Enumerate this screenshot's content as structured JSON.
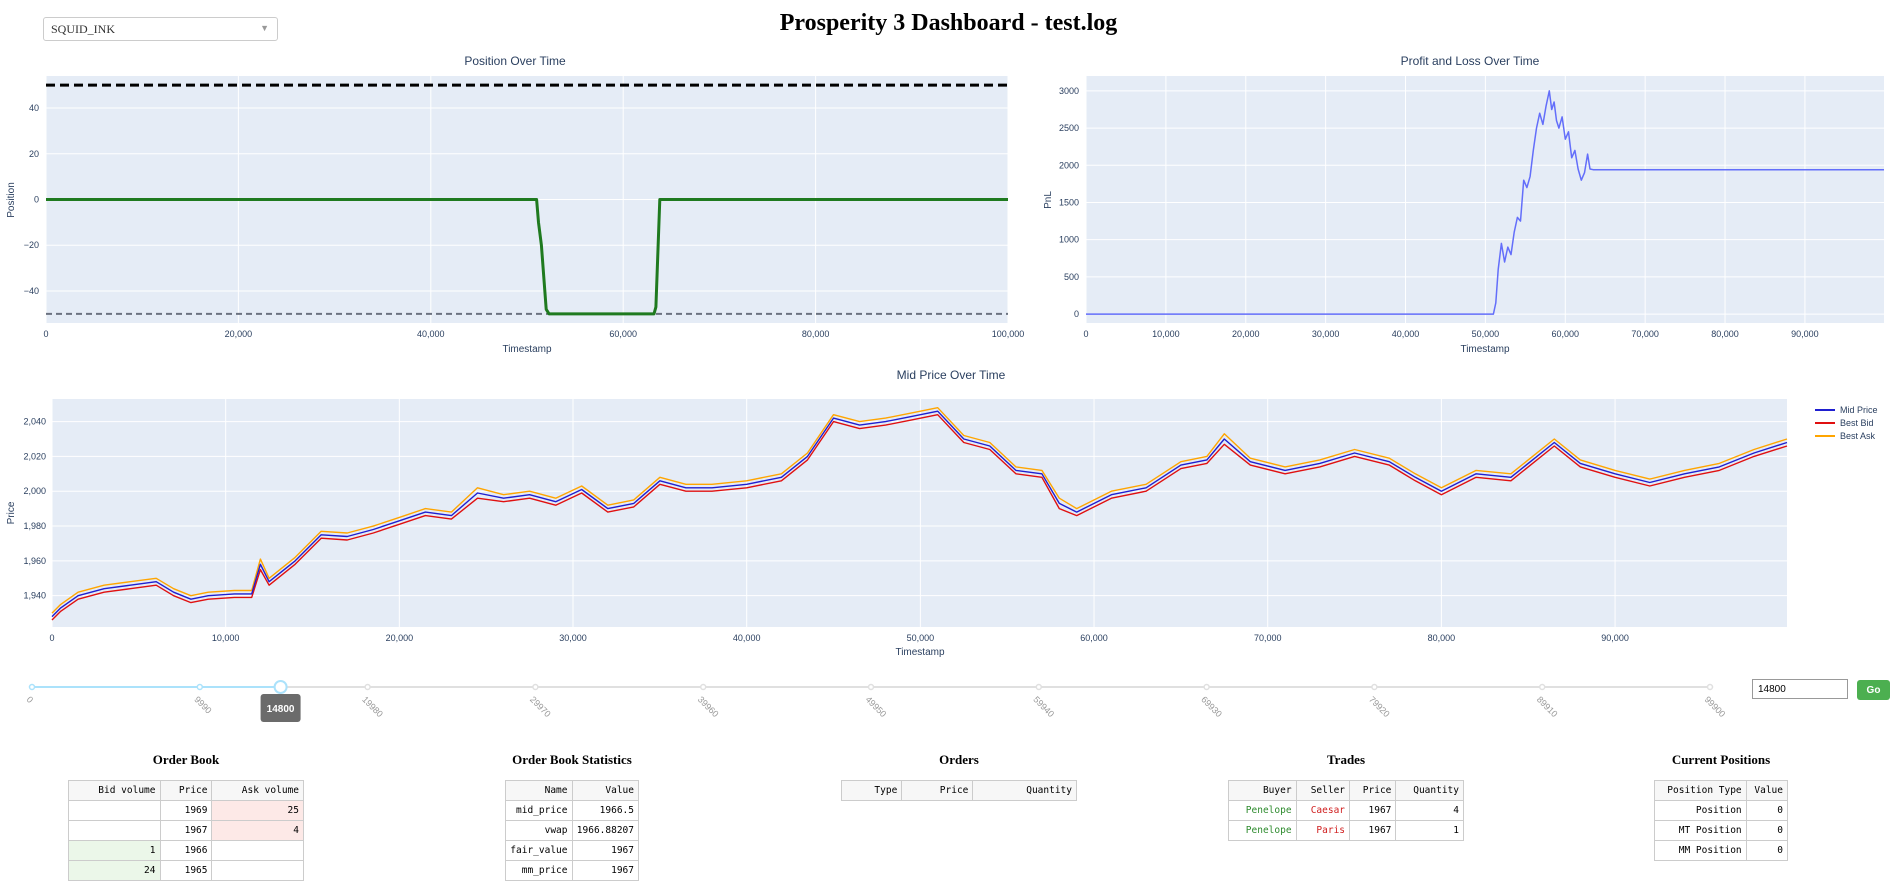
{
  "product_select": {
    "value": "SQUID_INK"
  },
  "title": "Prosperity 3 Dashboard - test.log",
  "chart_data": [
    {
      "id": "position",
      "type": "line",
      "title": "Position Over Time",
      "xlabel": "Timestamp",
      "ylabel": "Position",
      "xlim": [
        0,
        100000
      ],
      "ylim": [
        -54,
        54
      ],
      "xticks": [
        "0",
        "20,000",
        "40,000",
        "60,000",
        "80,000",
        "100,000"
      ],
      "xtick_values": [
        0,
        20000,
        40000,
        60000,
        80000,
        100000
      ],
      "yticks": [
        "40",
        "20",
        "0",
        "−20",
        "−40"
      ],
      "ytick_values": [
        40,
        20,
        0,
        -20,
        -40
      ],
      "reference_lines": [
        50,
        -50
      ],
      "grid": true,
      "series": [
        {
          "color": "#1f7a1f",
          "x": [
            0,
            51000,
            51200,
            51500,
            52000,
            52300,
            63200,
            63400,
            63800,
            100000
          ],
          "y": [
            0,
            0,
            -10,
            -20,
            -48,
            -50,
            -50,
            -47,
            0,
            0
          ]
        }
      ]
    },
    {
      "id": "pnl",
      "type": "line",
      "title": "Profit and Loss Over Time",
      "xlabel": "Timestamp",
      "ylabel": "PnL",
      "xlim": [
        0,
        99900
      ],
      "ylim": [
        -120,
        3200
      ],
      "xticks": [
        "0",
        "10,000",
        "20,000",
        "30,000",
        "40,000",
        "50,000",
        "60,000",
        "70,000",
        "80,000",
        "90,000"
      ],
      "xtick_values": [
        0,
        10000,
        20000,
        30000,
        40000,
        50000,
        60000,
        70000,
        80000,
        90000
      ],
      "yticks": [
        "3000",
        "2500",
        "2000",
        "1500",
        "1000",
        "500",
        "0"
      ],
      "ytick_values": [
        3000,
        2500,
        2000,
        1500,
        1000,
        500,
        0
      ],
      "grid": true,
      "series": [
        {
          "color": "#636efa",
          "x": [
            0,
            51000,
            51300,
            51600,
            52000,
            52400,
            52800,
            53200,
            53600,
            54000,
            54400,
            54800,
            55200,
            55600,
            56000,
            56400,
            56800,
            57200,
            57600,
            58000,
            58300,
            58600,
            58900,
            59200,
            59600,
            60000,
            60400,
            60800,
            61200,
            61600,
            62000,
            62400,
            62800,
            63100,
            63500,
            64000,
            70000,
            80000,
            90000,
            99900
          ],
          "y": [
            0,
            0,
            150,
            600,
            950,
            700,
            900,
            800,
            1100,
            1300,
            1250,
            1800,
            1700,
            1850,
            2200,
            2500,
            2700,
            2550,
            2800,
            3000,
            2750,
            2850,
            2600,
            2500,
            2650,
            2350,
            2450,
            2100,
            2200,
            1950,
            1800,
            1900,
            2150,
            1950,
            1940,
            1940,
            1940,
            1940,
            1940,
            1940
          ]
        }
      ]
    },
    {
      "id": "midprice",
      "type": "line",
      "title": "Mid Price Over Time",
      "xlabel": "Timestamp",
      "ylabel": "Price",
      "xlim": [
        0,
        99900
      ],
      "ylim": [
        1922,
        2053
      ],
      "xticks": [
        "0",
        "10,000",
        "20,000",
        "30,000",
        "40,000",
        "50,000",
        "60,000",
        "70,000",
        "80,000",
        "90,000"
      ],
      "xtick_values": [
        0,
        10000,
        20000,
        30000,
        40000,
        50000,
        60000,
        70000,
        80000,
        90000
      ],
      "yticks": [
        "2,040",
        "2,020",
        "2,000",
        "1,980",
        "1,960",
        "1,940"
      ],
      "ytick_values": [
        2040,
        2020,
        2000,
        1980,
        1960,
        1940
      ],
      "grid": true,
      "legend_position": "top-right",
      "x": [
        0,
        500,
        1500,
        3000,
        4500,
        6000,
        7000,
        8000,
        9000,
        10500,
        11500,
        12000,
        12500,
        14000,
        15500,
        17000,
        18500,
        20000,
        21500,
        23000,
        24500,
        26000,
        27500,
        29000,
        30500,
        32000,
        33500,
        35000,
        36500,
        38000,
        40000,
        42000,
        43500,
        45000,
        46500,
        48000,
        49500,
        51000,
        52500,
        54000,
        55500,
        57000,
        58000,
        59000,
        61000,
        63000,
        65000,
        66500,
        67500,
        69000,
        71000,
        73000,
        75000,
        77000,
        78500,
        80000,
        82000,
        84000,
        86500,
        88000,
        90000,
        92000,
        94000,
        96000,
        98000,
        99900
      ],
      "series": [
        {
          "name": "Mid Price",
          "color": "#1f1fd0",
          "y": [
            1928,
            1933,
            1940,
            1944,
            1946,
            1948,
            1942,
            1938,
            1940,
            1941,
            1941,
            1958,
            1948,
            1960,
            1975,
            1974,
            1978,
            1983,
            1988,
            1986,
            1999,
            1996,
            1998,
            1994,
            2001,
            1990,
            1993,
            2006,
            2002,
            2002,
            2004,
            2008,
            2020,
            2042,
            2038,
            2040,
            2043,
            2046,
            2030,
            2026,
            2012,
            2010,
            1993,
            1988,
            1998,
            2002,
            2015,
            2018,
            2030,
            2017,
            2012,
            2016,
            2022,
            2017,
            2008,
            2000,
            2010,
            2008,
            2028,
            2016,
            2010,
            2005,
            2010,
            2014,
            2022,
            2028
          ]
        },
        {
          "name": "Best Bid",
          "color": "#e01010",
          "y": [
            1926,
            1931,
            1938,
            1942,
            1944,
            1946,
            1940,
            1936,
            1938,
            1939,
            1939,
            1955,
            1946,
            1958,
            1973,
            1972,
            1976,
            1981,
            1986,
            1984,
            1996,
            1994,
            1996,
            1992,
            1999,
            1988,
            1991,
            2004,
            2000,
            2000,
            2002,
            2006,
            2018,
            2040,
            2036,
            2038,
            2041,
            2044,
            2028,
            2024,
            2010,
            2008,
            1990,
            1986,
            1996,
            2000,
            2013,
            2016,
            2027,
            2015,
            2010,
            2014,
            2020,
            2015,
            2006,
            1998,
            2008,
            2006,
            2026,
            2014,
            2008,
            2003,
            2008,
            2012,
            2020,
            2026
          ]
        },
        {
          "name": "Best Ask",
          "color": "#ffa500",
          "y": [
            1930,
            1935,
            1942,
            1946,
            1948,
            1950,
            1944,
            1940,
            1942,
            1943,
            1943,
            1961,
            1950,
            1962,
            1977,
            1976,
            1980,
            1985,
            1990,
            1988,
            2002,
            1998,
            2000,
            1996,
            2003,
            1992,
            1995,
            2008,
            2004,
            2004,
            2006,
            2010,
            2022,
            2044,
            2040,
            2042,
            2045,
            2048,
            2032,
            2028,
            2014,
            2012,
            1996,
            1990,
            2000,
            2004,
            2017,
            2020,
            2033,
            2019,
            2014,
            2018,
            2024,
            2019,
            2010,
            2002,
            2012,
            2010,
            2030,
            2018,
            2012,
            2007,
            2012,
            2016,
            2024,
            2030
          ]
        }
      ]
    }
  ],
  "slider": {
    "value": 14800,
    "value_label": "14800",
    "min": 0,
    "max": 99900,
    "marks": [
      "0",
      "9990",
      "19980",
      "29970",
      "39960",
      "49950",
      "59940",
      "69930",
      "79920",
      "89910",
      "99900"
    ],
    "mark_values": [
      0,
      9990,
      19980,
      29970,
      39960,
      49950,
      59940,
      69930,
      79920,
      89910,
      99900
    ]
  },
  "timestamp_input": {
    "value": "14800"
  },
  "go_button": {
    "label": "Go"
  },
  "order_book": {
    "title": "Order Book",
    "headers": [
      "Bid volume",
      "Price",
      "Ask volume"
    ],
    "rows": [
      {
        "bid": "",
        "price": "1969",
        "ask": "25"
      },
      {
        "bid": "",
        "price": "1967",
        "ask": "4"
      },
      {
        "bid": "1",
        "price": "1966",
        "ask": ""
      },
      {
        "bid": "24",
        "price": "1965",
        "ask": ""
      }
    ]
  },
  "stats": {
    "title": "Order Book Statistics",
    "headers": [
      "Name",
      "Value"
    ],
    "rows": [
      {
        "name": "mid_price",
        "value": "1966.5"
      },
      {
        "name": "vwap",
        "value": "1966.88207"
      },
      {
        "name": "fair_value",
        "value": "1967"
      },
      {
        "name": "mm_price",
        "value": "1967"
      }
    ]
  },
  "orders": {
    "title": "Orders",
    "headers": [
      "Type",
      "Price",
      "Quantity"
    ]
  },
  "trades": {
    "title": "Trades",
    "headers": [
      "Buyer",
      "Seller",
      "Price",
      "Quantity"
    ],
    "rows": [
      {
        "buyer": "Penelope",
        "seller": "Caesar",
        "price": "1967",
        "quantity": "4"
      },
      {
        "buyer": "Penelope",
        "seller": "Paris",
        "price": "1967",
        "quantity": "1"
      }
    ]
  },
  "positions": {
    "title": "Current Positions",
    "headers": [
      "Position Type",
      "Value"
    ],
    "rows": [
      {
        "type": "Position",
        "value": "0"
      },
      {
        "type": "MT Position",
        "value": "0"
      },
      {
        "type": "MM Position",
        "value": "0"
      }
    ]
  }
}
